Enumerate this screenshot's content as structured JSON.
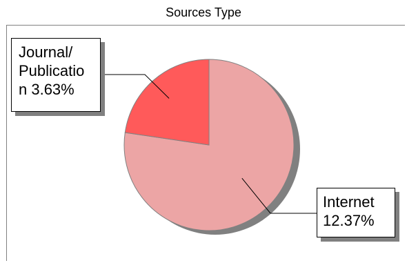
{
  "chart_data": {
    "type": "pie",
    "title": "Sources Type",
    "slices": [
      {
        "label_lines": [
          "Journal/",
          "Publicatio",
          "n 3.63%"
        ],
        "name": "Journal/Publication",
        "percent_label": "3.63%",
        "value": 3.63,
        "color": "#ff5a5a"
      },
      {
        "label_lines": [
          "Internet",
          "12.37%"
        ],
        "name": "Internet",
        "percent_label": "12.37%",
        "value": 12.37,
        "color": "#eca5a5"
      }
    ],
    "shadow_color": "#808080",
    "legend": "none"
  }
}
